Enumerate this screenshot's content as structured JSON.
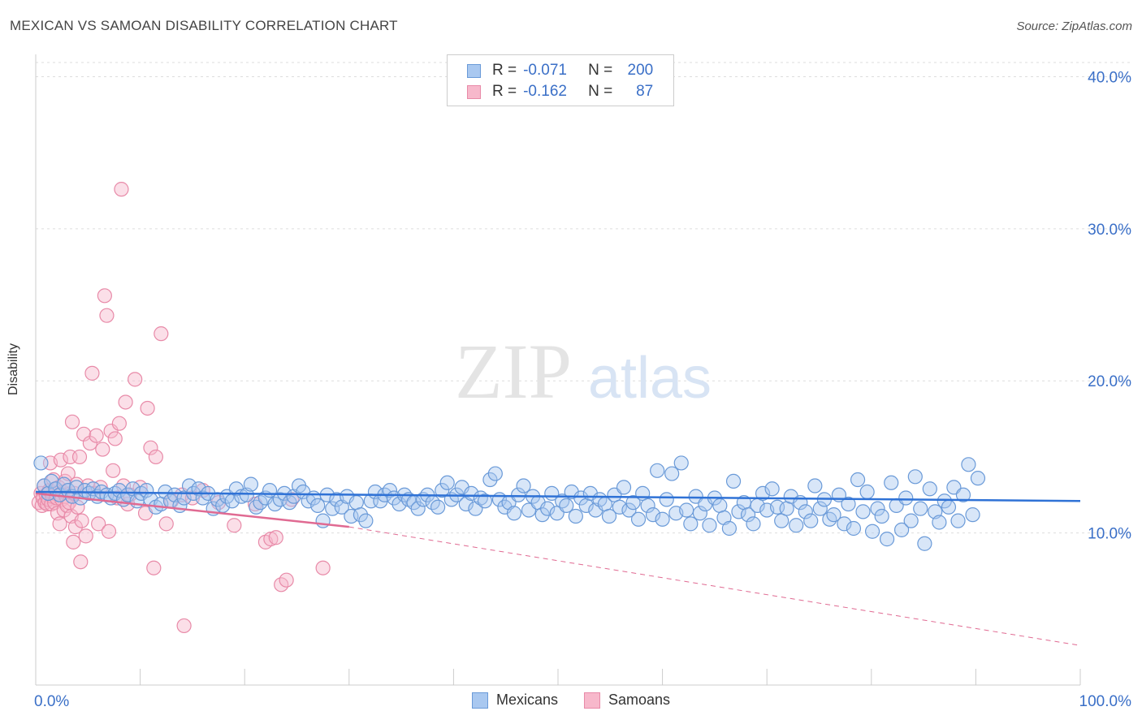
{
  "title": "MEXICAN VS SAMOAN DISABILITY CORRELATION CHART",
  "source": "Source: ZipAtlas.com",
  "watermark": {
    "zip": "ZIP",
    "atlas": "atlas"
  },
  "legend": {
    "rows": [
      {
        "r_label": "R =",
        "r_value": "-0.071",
        "n_label": "N =",
        "n_value": "200"
      },
      {
        "r_label": "R =",
        "r_value": "-0.162",
        "n_label": "N =",
        "n_value": "87"
      }
    ]
  },
  "colors": {
    "mexicans_fill": "#a9c8f0",
    "mexicans_stroke": "#6a9ad8",
    "mexicans_line": "#2f72d6",
    "samoans_fill": "#f7b8cb",
    "samoans_stroke": "#e88aa8",
    "samoans_line": "#e06a92",
    "axis_text": "#3a6fc7",
    "grid": "#dddddd"
  },
  "chart_data": {
    "type": "scatter",
    "title": "MEXICAN VS SAMOAN DISABILITY CORRELATION CHART",
    "xlabel": "",
    "ylabel": "Disability",
    "xlim": [
      0,
      100
    ],
    "ylim": [
      0,
      42
    ],
    "x_ticks": [
      0,
      100
    ],
    "x_tick_labels": [
      "0.0%",
      "100.0%"
    ],
    "y_ticks": [
      10,
      20,
      30,
      40
    ],
    "y_tick_labels": [
      "10.0%",
      "20.0%",
      "30.0%",
      "40.0%"
    ],
    "grid": true,
    "legend_position": "top-center",
    "series": [
      {
        "name": "Mexicans",
        "r": -0.071,
        "n": 200,
        "trend": {
          "x": [
            0,
            100
          ],
          "y": [
            12.7,
            12.1
          ]
        },
        "points": [
          [
            0.5,
            14.6
          ],
          [
            0.8,
            13.1
          ],
          [
            1.2,
            12.6
          ],
          [
            1.5,
            13.4
          ],
          [
            1.9,
            12.9
          ],
          [
            2.3,
            12.5
          ],
          [
            2.7,
            13.2
          ],
          [
            3.1,
            12.8
          ],
          [
            3.5,
            12.4
          ],
          [
            3.9,
            13.0
          ],
          [
            4.3,
            12.3
          ],
          [
            4.7,
            12.8
          ],
          [
            5.1,
            12.6
          ],
          [
            5.5,
            12.9
          ],
          [
            5.9,
            12.4
          ],
          [
            6.3,
            12.7
          ],
          [
            6.8,
            12.5
          ],
          [
            7.2,
            12.3
          ],
          [
            7.6,
            12.6
          ],
          [
            8.0,
            12.8
          ],
          [
            8.4,
            12.2
          ],
          [
            8.8,
            12.5
          ],
          [
            9.3,
            12.9
          ],
          [
            9.7,
            12.1
          ],
          [
            10.1,
            12.6
          ],
          [
            10.6,
            12.8
          ],
          [
            11.0,
            12.2
          ],
          [
            11.5,
            11.7
          ],
          [
            12.0,
            11.9
          ],
          [
            12.4,
            12.7
          ],
          [
            12.9,
            12.1
          ],
          [
            13.3,
            12.5
          ],
          [
            13.8,
            11.8
          ],
          [
            14.2,
            12.3
          ],
          [
            14.7,
            13.1
          ],
          [
            15.1,
            12.6
          ],
          [
            15.6,
            12.9
          ],
          [
            16.0,
            12.3
          ],
          [
            16.5,
            12.6
          ],
          [
            17.0,
            11.6
          ],
          [
            17.4,
            12.2
          ],
          [
            17.9,
            11.8
          ],
          [
            18.3,
            12.4
          ],
          [
            18.8,
            12.1
          ],
          [
            19.2,
            12.9
          ],
          [
            19.7,
            12.4
          ],
          [
            20.2,
            12.5
          ],
          [
            20.6,
            13.2
          ],
          [
            21.1,
            11.7
          ],
          [
            21.5,
            12.0
          ],
          [
            22.0,
            12.3
          ],
          [
            22.4,
            12.8
          ],
          [
            22.9,
            11.9
          ],
          [
            23.4,
            12.2
          ],
          [
            23.8,
            12.6
          ],
          [
            24.3,
            12.0
          ],
          [
            24.7,
            12.4
          ],
          [
            25.2,
            13.1
          ],
          [
            25.6,
            12.7
          ],
          [
            26.1,
            12.1
          ],
          [
            26.6,
            12.3
          ],
          [
            27.0,
            11.8
          ],
          [
            27.5,
            10.8
          ],
          [
            27.9,
            12.5
          ],
          [
            28.4,
            11.6
          ],
          [
            28.8,
            12.2
          ],
          [
            29.3,
            11.7
          ],
          [
            29.8,
            12.4
          ],
          [
            30.2,
            11.1
          ],
          [
            30.7,
            12.0
          ],
          [
            31.1,
            11.2
          ],
          [
            31.6,
            10.8
          ],
          [
            32.1,
            12.1
          ],
          [
            32.5,
            12.7
          ],
          [
            33.0,
            12.1
          ],
          [
            33.4,
            12.5
          ],
          [
            33.9,
            12.8
          ],
          [
            34.3,
            12.3
          ],
          [
            34.8,
            11.9
          ],
          [
            35.3,
            12.5
          ],
          [
            35.7,
            12.2
          ],
          [
            36.2,
            12.0
          ],
          [
            36.6,
            11.6
          ],
          [
            37.1,
            12.2
          ],
          [
            37.5,
            12.5
          ],
          [
            38.0,
            12.0
          ],
          [
            38.5,
            11.7
          ],
          [
            38.9,
            12.8
          ],
          [
            39.4,
            13.3
          ],
          [
            39.8,
            12.2
          ],
          [
            40.3,
            12.5
          ],
          [
            40.8,
            13.0
          ],
          [
            41.2,
            11.9
          ],
          [
            41.7,
            12.6
          ],
          [
            42.1,
            11.6
          ],
          [
            42.6,
            12.3
          ],
          [
            43.0,
            12.1
          ],
          [
            43.5,
            13.5
          ],
          [
            44.0,
            13.9
          ],
          [
            44.4,
            12.2
          ],
          [
            44.9,
            11.7
          ],
          [
            45.3,
            12.0
          ],
          [
            45.8,
            11.3
          ],
          [
            46.2,
            12.5
          ],
          [
            46.7,
            13.1
          ],
          [
            47.2,
            11.5
          ],
          [
            47.6,
            12.4
          ],
          [
            48.1,
            12.0
          ],
          [
            48.5,
            11.2
          ],
          [
            49.0,
            11.6
          ],
          [
            49.4,
            12.6
          ],
          [
            49.9,
            11.3
          ],
          [
            50.4,
            12.1
          ],
          [
            50.8,
            11.8
          ],
          [
            51.3,
            12.7
          ],
          [
            51.7,
            11.1
          ],
          [
            52.2,
            12.3
          ],
          [
            52.7,
            11.8
          ],
          [
            53.1,
            12.6
          ],
          [
            53.6,
            11.5
          ],
          [
            54.0,
            12.2
          ],
          [
            54.5,
            11.9
          ],
          [
            54.9,
            11.1
          ],
          [
            55.4,
            12.5
          ],
          [
            55.9,
            11.7
          ],
          [
            56.3,
            13.0
          ],
          [
            56.8,
            11.5
          ],
          [
            57.2,
            12.0
          ],
          [
            57.7,
            10.9
          ],
          [
            58.1,
            12.6
          ],
          [
            58.6,
            11.8
          ],
          [
            59.1,
            11.2
          ],
          [
            59.5,
            14.1
          ],
          [
            60.0,
            10.9
          ],
          [
            60.4,
            12.2
          ],
          [
            60.9,
            13.9
          ],
          [
            61.3,
            11.3
          ],
          [
            61.8,
            14.6
          ],
          [
            62.3,
            11.5
          ],
          [
            62.7,
            10.6
          ],
          [
            63.2,
            12.4
          ],
          [
            63.6,
            11.3
          ],
          [
            64.1,
            11.9
          ],
          [
            64.5,
            10.5
          ],
          [
            65.0,
            12.3
          ],
          [
            65.5,
            11.8
          ],
          [
            65.9,
            11.0
          ],
          [
            66.4,
            10.3
          ],
          [
            66.8,
            13.4
          ],
          [
            67.3,
            11.4
          ],
          [
            67.8,
            12.0
          ],
          [
            68.2,
            11.2
          ],
          [
            68.7,
            10.6
          ],
          [
            69.1,
            11.8
          ],
          [
            69.6,
            12.6
          ],
          [
            70.0,
            11.5
          ],
          [
            70.5,
            12.9
          ],
          [
            71.0,
            11.7
          ],
          [
            71.4,
            10.8
          ],
          [
            71.9,
            11.6
          ],
          [
            72.3,
            12.4
          ],
          [
            72.8,
            10.5
          ],
          [
            73.2,
            12.0
          ],
          [
            73.7,
            11.4
          ],
          [
            74.2,
            10.8
          ],
          [
            74.6,
            13.1
          ],
          [
            75.1,
            11.6
          ],
          [
            75.5,
            12.2
          ],
          [
            76.0,
            10.9
          ],
          [
            76.4,
            11.2
          ],
          [
            76.9,
            12.5
          ],
          [
            77.4,
            10.6
          ],
          [
            77.8,
            11.9
          ],
          [
            78.3,
            10.3
          ],
          [
            78.7,
            13.5
          ],
          [
            79.2,
            11.4
          ],
          [
            79.6,
            12.7
          ],
          [
            80.1,
            10.1
          ],
          [
            80.6,
            11.6
          ],
          [
            81.0,
            11.1
          ],
          [
            81.5,
            9.6
          ],
          [
            81.9,
            13.3
          ],
          [
            82.4,
            11.8
          ],
          [
            82.9,
            10.2
          ],
          [
            83.3,
            12.3
          ],
          [
            83.8,
            10.8
          ],
          [
            84.2,
            13.7
          ],
          [
            84.7,
            11.6
          ],
          [
            85.1,
            9.3
          ],
          [
            85.6,
            12.9
          ],
          [
            86.1,
            11.4
          ],
          [
            86.5,
            10.7
          ],
          [
            87.0,
            12.1
          ],
          [
            87.4,
            11.7
          ],
          [
            87.9,
            13.0
          ],
          [
            88.3,
            10.8
          ],
          [
            88.8,
            12.5
          ],
          [
            89.3,
            14.5
          ],
          [
            89.7,
            11.2
          ],
          [
            90.2,
            13.6
          ]
        ]
      },
      {
        "name": "Samoans",
        "r": -0.162,
        "n": 87,
        "trend": {
          "x": [
            0,
            30
          ],
          "y": [
            12.6,
            10.4
          ]
        },
        "trend_extended": {
          "x": [
            30,
            100
          ],
          "y": [
            10.4,
            2.6
          ]
        },
        "points": [
          [
            0.3,
            12.0
          ],
          [
            0.5,
            12.6
          ],
          [
            0.6,
            11.8
          ],
          [
            0.7,
            12.3
          ],
          [
            0.8,
            13.1
          ],
          [
            0.9,
            12.0
          ],
          [
            1.0,
            12.5
          ],
          [
            1.1,
            11.9
          ],
          [
            1.2,
            12.2
          ],
          [
            1.3,
            12.8
          ],
          [
            1.4,
            14.6
          ],
          [
            1.5,
            11.9
          ],
          [
            1.6,
            12.4
          ],
          [
            1.7,
            13.5
          ],
          [
            1.8,
            12.0
          ],
          [
            1.9,
            12.6
          ],
          [
            2.0,
            12.3
          ],
          [
            2.1,
            11.3
          ],
          [
            2.2,
            13.0
          ],
          [
            2.3,
            10.6
          ],
          [
            2.4,
            14.8
          ],
          [
            2.5,
            12.2
          ],
          [
            2.6,
            12.7
          ],
          [
            2.7,
            11.5
          ],
          [
            2.8,
            13.4
          ],
          [
            2.9,
            12.4
          ],
          [
            3.0,
            11.8
          ],
          [
            3.1,
            13.9
          ],
          [
            3.2,
            12.0
          ],
          [
            3.3,
            15.0
          ],
          [
            3.4,
            11.1
          ],
          [
            3.5,
            17.3
          ],
          [
            3.6,
            9.4
          ],
          [
            3.7,
            12.6
          ],
          [
            3.8,
            10.4
          ],
          [
            3.9,
            13.2
          ],
          [
            4.0,
            11.7
          ],
          [
            4.2,
            15.0
          ],
          [
            4.3,
            8.1
          ],
          [
            4.4,
            10.8
          ],
          [
            4.6,
            16.5
          ],
          [
            4.8,
            9.8
          ],
          [
            5.0,
            13.1
          ],
          [
            5.2,
            15.9
          ],
          [
            5.4,
            20.5
          ],
          [
            5.6,
            12.6
          ],
          [
            5.8,
            16.4
          ],
          [
            6.0,
            10.6
          ],
          [
            6.2,
            13.0
          ],
          [
            6.4,
            15.5
          ],
          [
            6.6,
            25.6
          ],
          [
            6.8,
            24.3
          ],
          [
            7.0,
            10.1
          ],
          [
            7.2,
            16.7
          ],
          [
            7.4,
            14.1
          ],
          [
            7.6,
            16.2
          ],
          [
            7.8,
            12.3
          ],
          [
            8.0,
            17.2
          ],
          [
            8.2,
            32.6
          ],
          [
            8.4,
            13.1
          ],
          [
            8.6,
            18.6
          ],
          [
            8.8,
            11.9
          ],
          [
            9.0,
            12.5
          ],
          [
            9.5,
            20.1
          ],
          [
            10.0,
            13.0
          ],
          [
            10.5,
            11.3
          ],
          [
            10.7,
            18.2
          ],
          [
            11.0,
            15.6
          ],
          [
            11.3,
            7.7
          ],
          [
            11.5,
            15.0
          ],
          [
            12.0,
            23.1
          ],
          [
            12.5,
            10.6
          ],
          [
            13.0,
            12.1
          ],
          [
            14.0,
            12.5
          ],
          [
            14.2,
            3.9
          ],
          [
            15.0,
            12.3
          ],
          [
            16.0,
            12.8
          ],
          [
            17.5,
            12.0
          ],
          [
            19.0,
            10.5
          ],
          [
            21.0,
            11.9
          ],
          [
            22.0,
            9.4
          ],
          [
            22.5,
            9.6
          ],
          [
            23.0,
            9.7
          ],
          [
            23.5,
            6.6
          ],
          [
            24.0,
            6.9
          ],
          [
            24.5,
            12.2
          ],
          [
            27.5,
            7.7
          ]
        ]
      }
    ]
  }
}
